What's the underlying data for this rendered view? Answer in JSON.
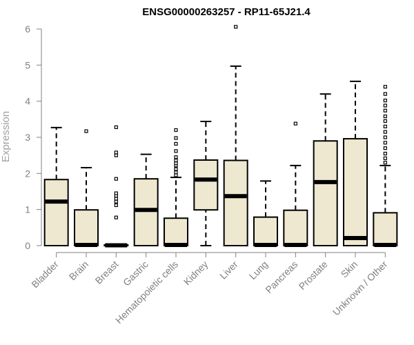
{
  "chart_data": {
    "type": "box",
    "title": "ENSG00000263257 - RP11-65J21.4",
    "xlabel": "",
    "ylabel": "Expression",
    "ylim": [
      0,
      6
    ],
    "yticks": [
      0,
      1,
      2,
      3,
      4,
      5,
      6
    ],
    "grid": false,
    "legend": "none",
    "box_fill": "#EEE8D0",
    "stroke": "#000000",
    "categories": [
      "Bladder",
      "Brain",
      "Breast",
      "Gastric",
      "Hematopoietic cells",
      "Kidney",
      "Liver",
      "Lung",
      "Pancreas",
      "Prostate",
      "Skin",
      "Unknown / Other"
    ],
    "boxes": [
      {
        "q1": 0,
        "median": 1.22,
        "q3": 1.83,
        "whisker_low": 0,
        "whisker_high": 3.27,
        "outliers": []
      },
      {
        "q1": 0,
        "median": 0.02,
        "q3": 0.99,
        "whisker_low": 0,
        "whisker_high": 2.16,
        "outliers": [
          3.17
        ]
      },
      {
        "q1": 0,
        "median": 0.01,
        "q3": 0.02,
        "whisker_low": 0,
        "whisker_high": 0.03,
        "outliers": [
          0.78,
          1.12,
          1.22,
          1.3,
          1.38,
          1.45,
          1.85,
          2.5,
          2.58,
          3.28
        ]
      },
      {
        "q1": 0,
        "median": 0.99,
        "q3": 1.85,
        "whisker_low": 0,
        "whisker_high": 2.53,
        "outliers": []
      },
      {
        "q1": 0,
        "median": 0.02,
        "q3": 0.76,
        "whisker_low": 0,
        "whisker_high": 1.89,
        "outliers": [
          1.95,
          2.03,
          2.12,
          2.22,
          2.28,
          2.36,
          2.45,
          2.62,
          2.82,
          2.98,
          3.2
        ]
      },
      {
        "q1": 0.99,
        "median": 1.83,
        "q3": 2.37,
        "whisker_low": 0,
        "whisker_high": 3.44,
        "outliers": []
      },
      {
        "q1": 0,
        "median": 1.37,
        "q3": 2.36,
        "whisker_low": 0,
        "whisker_high": 4.97,
        "outliers": [
          6.06
        ]
      },
      {
        "q1": 0,
        "median": 0.02,
        "q3": 0.79,
        "whisker_low": 0,
        "whisker_high": 1.79,
        "outliers": []
      },
      {
        "q1": 0,
        "median": 0.02,
        "q3": 0.98,
        "whisker_low": 0,
        "whisker_high": 2.22,
        "outliers": [
          3.38
        ]
      },
      {
        "q1": 0,
        "median": 1.76,
        "q3": 2.9,
        "whisker_low": 0,
        "whisker_high": 4.2,
        "outliers": []
      },
      {
        "q1": 0,
        "median": 0.21,
        "q3": 2.96,
        "whisker_low": 0,
        "whisker_high": 4.55,
        "outliers": []
      },
      {
        "q1": 0,
        "median": 0.02,
        "q3": 0.91,
        "whisker_low": 0,
        "whisker_high": 2.22,
        "outliers": [
          2.3,
          2.42,
          2.55,
          2.7,
          2.85,
          3.0,
          3.15,
          3.3,
          3.45,
          3.58,
          3.74,
          3.88,
          4.02,
          4.2,
          4.4
        ]
      }
    ]
  }
}
